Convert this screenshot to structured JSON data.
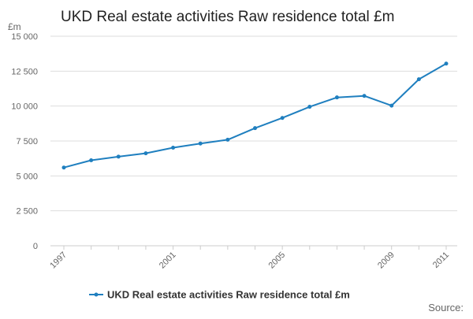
{
  "chart_data": {
    "type": "line",
    "title": "UKD Real estate activities Raw residence total £m",
    "ylabel": "£m",
    "xlabel": "",
    "x": [
      1997,
      1998,
      1999,
      2000,
      2001,
      2002,
      2003,
      2004,
      2005,
      2006,
      2007,
      2008,
      2009,
      2010,
      2011
    ],
    "series": [
      {
        "name": "UKD Real estate activities Raw residence total £m",
        "values": [
          5600,
          6120,
          6380,
          6620,
          7020,
          7320,
          7590,
          8420,
          9150,
          9950,
          10620,
          10730,
          10030,
          11920,
          13040
        ]
      }
    ],
    "ylim": [
      0,
      15000
    ],
    "yticks": [
      0,
      2500,
      5000,
      7500,
      10000,
      12500,
      15000
    ],
    "ytick_labels": [
      "0",
      "2 500",
      "5 000",
      "7 500",
      "10 000",
      "12 500",
      "15 000"
    ],
    "xticks": [
      1997,
      2001,
      2005,
      2009,
      2011
    ],
    "xtick_labels": [
      "1997",
      "2001",
      "2005",
      "2009",
      "2011"
    ],
    "grid": true,
    "legend": "bottom-center",
    "source_label": "Source:",
    "line_color": "#1f7fbf",
    "grid_color": "#dddddd",
    "text_color": "#333333",
    "tick_color": "#666666"
  }
}
